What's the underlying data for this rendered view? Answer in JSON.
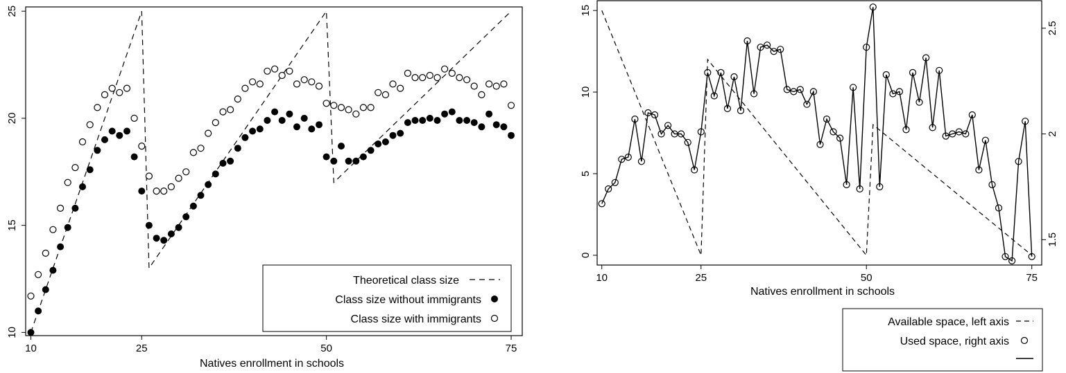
{
  "chart_data": [
    {
      "type": "scatter",
      "title": "",
      "xlabel": "Natives enrollment in schools",
      "ylabel": "",
      "xlim": [
        9.3,
        76.5
      ],
      "ylim": [
        9.85,
        25.2
      ],
      "x_ticks": [
        "10",
        "25",
        "50",
        "75"
      ],
      "y_ticks": [
        "10",
        "15",
        "20",
        "25"
      ],
      "grid": false,
      "legend_position": "bottom-right",
      "legend": [
        {
          "label": "Theoretical class size",
          "marker": "dashed-line"
        },
        {
          "label": "Class size without immigrants",
          "marker": "filled-circle"
        },
        {
          "label": "Class size with immigrants",
          "marker": "hollow-circle"
        }
      ],
      "series": [
        {
          "name": "Theoretical class size",
          "style": "dashed-line",
          "x": [
            10,
            25,
            26,
            50,
            51,
            75
          ],
          "y": [
            10,
            25,
            13,
            25,
            17,
            25
          ]
        },
        {
          "name": "Class size without immigrants",
          "style": "filled-circle",
          "x": [
            10,
            11,
            12,
            13,
            14,
            15,
            16,
            17,
            18,
            19,
            20,
            21,
            22,
            23,
            24,
            25,
            26,
            27,
            28,
            29,
            30,
            31,
            32,
            33,
            34,
            35,
            36,
            37,
            38,
            39,
            40,
            41,
            42,
            43,
            44,
            45,
            46,
            47,
            48,
            49,
            50,
            51,
            52,
            53,
            54,
            55,
            56,
            57,
            58,
            59,
            60,
            61,
            62,
            63,
            64,
            65,
            66,
            67,
            68,
            69,
            70,
            71,
            72,
            73,
            74,
            75
          ],
          "y": [
            10.0,
            11.0,
            12.0,
            12.9,
            14.0,
            14.9,
            15.8,
            16.8,
            17.6,
            18.5,
            19.0,
            19.4,
            19.2,
            19.4,
            18.2,
            16.6,
            15.0,
            14.4,
            14.3,
            14.6,
            14.9,
            15.4,
            15.9,
            16.4,
            16.9,
            17.4,
            17.9,
            18.0,
            18.6,
            19.1,
            19.4,
            19.5,
            19.9,
            20.3,
            19.9,
            20.2,
            19.6,
            20.0,
            19.5,
            19.7,
            18.2,
            18.0,
            18.7,
            18.0,
            18.0,
            18.2,
            18.5,
            18.8,
            18.9,
            19.2,
            19.3,
            19.8,
            19.9,
            19.9,
            20.0,
            19.9,
            20.2,
            20.3,
            19.9,
            19.9,
            19.8,
            19.6,
            20.2,
            19.7,
            19.6,
            19.2
          ]
        },
        {
          "name": "Class size with immigrants",
          "style": "hollow-circle",
          "x": [
            10,
            11,
            12,
            13,
            14,
            15,
            16,
            17,
            18,
            19,
            20,
            21,
            22,
            23,
            24,
            25,
            26,
            27,
            28,
            29,
            30,
            31,
            32,
            33,
            34,
            35,
            36,
            37,
            38,
            39,
            40,
            41,
            42,
            43,
            44,
            45,
            46,
            47,
            48,
            49,
            50,
            51,
            52,
            53,
            54,
            55,
            56,
            57,
            58,
            59,
            60,
            61,
            62,
            63,
            64,
            65,
            66,
            67,
            68,
            69,
            70,
            71,
            72,
            73,
            74,
            75
          ],
          "y": [
            11.7,
            12.7,
            13.7,
            14.8,
            15.8,
            17.0,
            17.7,
            18.9,
            19.7,
            20.5,
            21.1,
            21.4,
            21.2,
            21.4,
            20.0,
            18.7,
            17.3,
            16.6,
            16.6,
            16.8,
            17.2,
            17.5,
            18.4,
            18.6,
            19.3,
            19.8,
            20.3,
            20.4,
            20.9,
            21.4,
            21.7,
            21.6,
            22.2,
            22.3,
            22.0,
            22.2,
            21.6,
            21.8,
            21.7,
            21.5,
            20.7,
            20.6,
            20.5,
            20.4,
            20.2,
            20.5,
            20.5,
            21.2,
            21.1,
            21.6,
            21.4,
            22.1,
            21.9,
            21.9,
            22.0,
            21.9,
            22.3,
            22.1,
            21.9,
            21.8,
            21.5,
            21.1,
            21.6,
            21.5,
            21.6,
            20.6
          ]
        }
      ]
    },
    {
      "type": "line",
      "title": "",
      "xlabel": "Natives enrollment in schools",
      "ylabel": "",
      "xlim": [
        9.3,
        76.5
      ],
      "ylim": [
        -0.6,
        15.6
      ],
      "y2lim": [
        1.38,
        2.63
      ],
      "x_ticks": [
        "10",
        "25",
        "50",
        "75"
      ],
      "y_ticks": [
        "0",
        "5",
        "10",
        "15"
      ],
      "y2_ticks": [
        "1.5",
        "2",
        "2.5"
      ],
      "grid": false,
      "legend_position": "below-right",
      "legend": [
        {
          "label": "Available space, left axis",
          "marker": "dashed-line"
        },
        {
          "label": "Used space, right axis",
          "marker": "hollow-circle"
        },
        {
          "label": "",
          "marker": "solid-line"
        }
      ],
      "series": [
        {
          "name": "Available space, left axis",
          "axis": "left",
          "style": "dashed-line",
          "x": [
            10,
            25,
            26,
            50,
            51,
            75
          ],
          "y": [
            15,
            0,
            12,
            0,
            8,
            0
          ]
        },
        {
          "name": "Used space, right axis",
          "axis": "right",
          "style": "hollow-circle-solid-line",
          "x": [
            10,
            11,
            12,
            13,
            14,
            15,
            16,
            17,
            18,
            19,
            20,
            21,
            22,
            23,
            24,
            25,
            26,
            27,
            28,
            29,
            30,
            31,
            32,
            33,
            34,
            35,
            36,
            37,
            38,
            39,
            40,
            41,
            42,
            43,
            44,
            45,
            46,
            47,
            48,
            49,
            50,
            51,
            52,
            53,
            54,
            55,
            56,
            57,
            58,
            59,
            60,
            61,
            62,
            63,
            64,
            65,
            66,
            67,
            68,
            69,
            70,
            71,
            72,
            73,
            74,
            75
          ],
          "y": [
            1.67,
            1.74,
            1.77,
            1.88,
            1.89,
            2.07,
            1.87,
            2.1,
            2.09,
            2.0,
            2.04,
            2.0,
            2.0,
            1.96,
            1.83,
            2.01,
            2.29,
            2.18,
            2.29,
            2.12,
            2.27,
            2.11,
            2.44,
            2.19,
            2.41,
            2.42,
            2.39,
            2.4,
            2.21,
            2.2,
            2.21,
            2.14,
            2.2,
            1.95,
            2.07,
            2.01,
            1.98,
            1.76,
            2.22,
            1.74,
            2.41,
            2.6,
            1.75,
            2.28,
            2.19,
            2.2,
            2.02,
            2.29,
            2.15,
            2.36,
            2.03,
            2.3,
            1.99,
            2.0,
            2.01,
            2.0,
            2.09,
            1.83,
            1.97,
            1.76,
            1.65,
            1.42,
            1.4,
            1.87,
            2.06,
            1.42
          ]
        }
      ]
    }
  ]
}
